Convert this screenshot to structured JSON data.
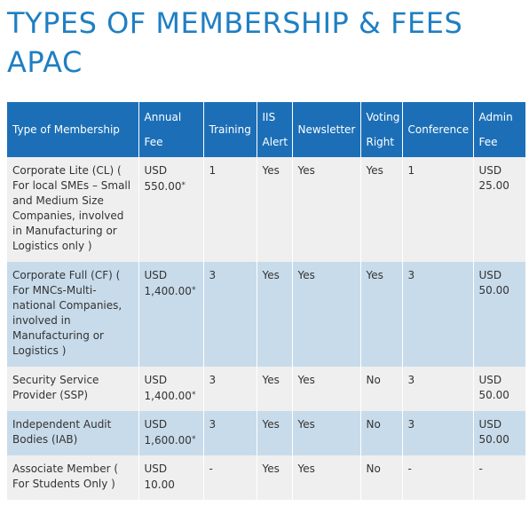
{
  "title": "TYPES OF MEMBERSHIP & FEES APAC",
  "table": {
    "headers": [
      "Type of Membership",
      "Annual Fee",
      "Training",
      "IIS Alert",
      "Newsletter",
      "Voting Right",
      "Conference",
      "Admin Fee"
    ],
    "rows": [
      {
        "type": "Corporate Lite (CL) ( For local SMEs – Small and Medium Size Companies, involved in Manufacturing or Logistics only )",
        "annual_fee_currency": "USD",
        "annual_fee_amount": "550.00",
        "annual_fee_mark": "*",
        "training": "1",
        "iis_alert": "Yes",
        "newsletter": "Yes",
        "voting_right": "Yes",
        "conference": "1",
        "admin_fee_currency": "USD",
        "admin_fee_amount": "25.00"
      },
      {
        "type": "Corporate Full (CF) ( For MNCs-Multi-national Companies, involved in Manufacturing or Logistics )",
        "annual_fee_currency": "USD",
        "annual_fee_amount": "1,400.00",
        "annual_fee_mark": "*",
        "training": "3",
        "iis_alert": "Yes",
        "newsletter": "Yes",
        "voting_right": "Yes",
        "conference": "3",
        "admin_fee_currency": "USD",
        "admin_fee_amount": "50.00"
      },
      {
        "type": "Security Service Provider (SSP)",
        "annual_fee_currency": "USD",
        "annual_fee_amount": "1,400.00",
        "annual_fee_mark": "*",
        "training": "3",
        "iis_alert": "Yes",
        "newsletter": "Yes",
        "voting_right": "No",
        "conference": "3",
        "admin_fee_currency": "USD",
        "admin_fee_amount": "50.00"
      },
      {
        "type": "Independent Audit Bodies (IAB)",
        "annual_fee_currency": "USD",
        "annual_fee_amount": "1,600.00",
        "annual_fee_mark": "*",
        "training": "3",
        "iis_alert": "Yes",
        "newsletter": "Yes",
        "voting_right": "No",
        "conference": "3",
        "admin_fee_currency": "USD",
        "admin_fee_amount": "50.00"
      },
      {
        "type": "Associate Member ( For Students Only )",
        "annual_fee_currency": "USD",
        "annual_fee_amount": "10.00",
        "annual_fee_mark": "",
        "training": "-",
        "iis_alert": "Yes",
        "newsletter": "Yes",
        "voting_right": "No",
        "conference": "-",
        "admin_fee_currency": "-",
        "admin_fee_amount": ""
      }
    ]
  },
  "colors": {
    "title": "#1f7fc3",
    "header_bg": "#1c6fb7",
    "row_light": "#efefef",
    "row_blue": "#c8dbea"
  }
}
